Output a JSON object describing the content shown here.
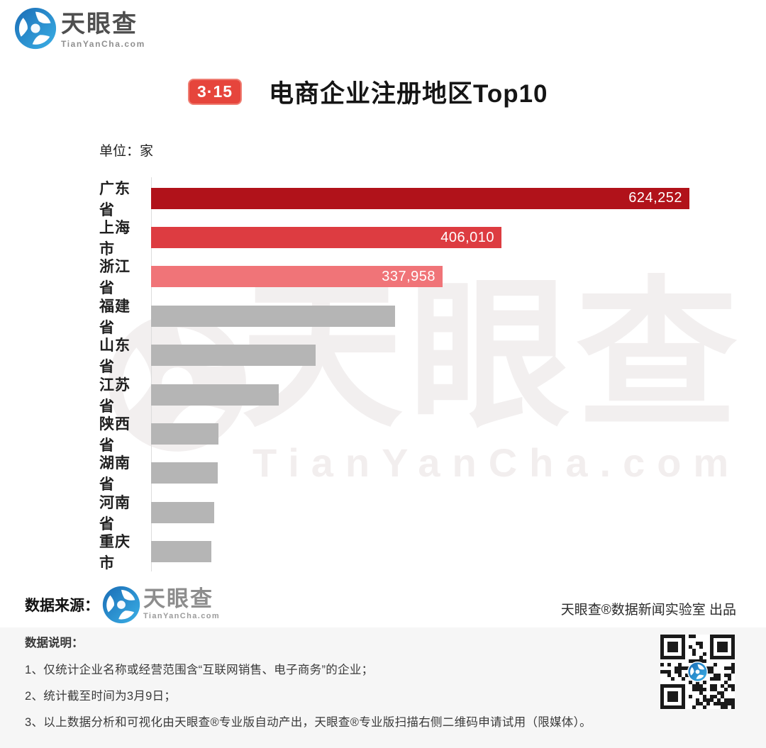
{
  "brand": {
    "logo_text": "天眼查",
    "logo_domain": "TianYanCha.com"
  },
  "header": {
    "badge": "3·15",
    "title": "电商企业注册地区Top10",
    "unit_label": "单位：家"
  },
  "chart_data": {
    "type": "bar",
    "orientation": "horizontal",
    "title": "电商企业注册地区Top10",
    "unit": "家",
    "max_value": 624252,
    "categories": [
      "广东省",
      "上海市",
      "浙江省",
      "福建省",
      "山东省",
      "江苏省",
      "陕西省",
      "湖南省",
      "河南省",
      "重庆市"
    ],
    "values": [
      624252,
      406010,
      337958,
      283000,
      191000,
      148000,
      78000,
      77500,
      73000,
      70000
    ],
    "value_labels": [
      "624,252",
      "406,010",
      "337,958",
      "",
      "",
      "",
      "",
      "",
      "",
      ""
    ],
    "values_note": "only top 3 bars carry printed labels; remaining values estimated from bar lengths",
    "bar_colors": [
      "#b1121a",
      "#dd3c41",
      "#f07478",
      "#b5b5b5",
      "#b5b5b5",
      "#b5b5b5",
      "#b5b5b5",
      "#b5b5b5",
      "#b5b5b5",
      "#b5b5b5"
    ],
    "legend": false,
    "grid": false
  },
  "watermark": {
    "text": "天眼查",
    "domain": "TianYanCha.com"
  },
  "footer": {
    "source_label": "数据来源：",
    "source_brand": "天眼查",
    "source_domain": "TianYanCha.com",
    "producer": "天眼查®数据新闻实验室 出品",
    "notes_title": "数据说明：",
    "notes": [
      "1、仅统计企业名称或经营范围含“互联网销售、电子商务”的企业；",
      "2、统计截至时间为3月9日；",
      "3、以上数据分析和可视化由天眼查®专业版自动产出，天眼查®专业版扫描右侧二维码申请试用（限媒体）。"
    ]
  },
  "colors": {
    "bar_red_dark": "#b1121a",
    "bar_red": "#dd3c41",
    "bar_red_light": "#f07478",
    "bar_gray": "#b5b5b5",
    "badge_red": "#e6453c",
    "brand_blue": "#2b8fd0",
    "notes_bg": "#f6f6f6"
  }
}
